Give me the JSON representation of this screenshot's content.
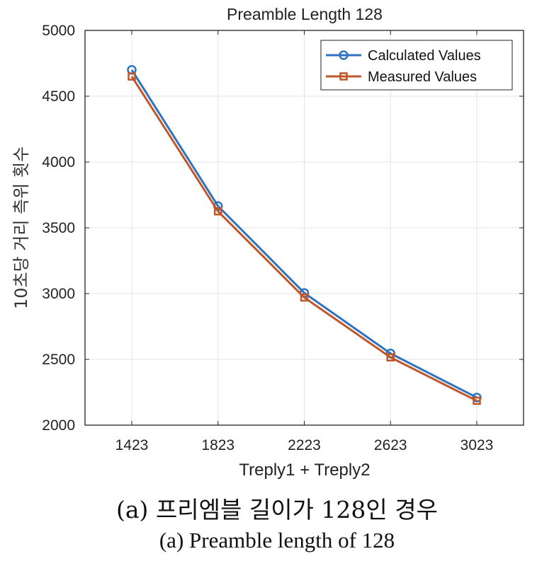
{
  "chart_data": {
    "type": "line",
    "title": "Preamble Length 128",
    "xlabel": "Treply1 + Treply2",
    "ylabel": "10초당 거리 측위 횟수",
    "categories": [
      "1423",
      "1823",
      "2223",
      "2623",
      "3023"
    ],
    "ylim": [
      2000,
      5000
    ],
    "yticks": [
      "2000",
      "2500",
      "3000",
      "3500",
      "4000",
      "4500",
      "5000"
    ],
    "grid": true,
    "legend_position": "top-right",
    "series": [
      {
        "name": "Calculated Values",
        "values": [
          4700,
          3665,
          3005,
          2545,
          2210
        ],
        "color": "#2f73c0",
        "marker": "circle"
      },
      {
        "name": "Measured Values",
        "values": [
          4650,
          3625,
          2970,
          2515,
          2185
        ],
        "color": "#c0572a",
        "marker": "square"
      }
    ]
  },
  "captions": {
    "korean": "(a) 프리엠블 길이가 128인 경우",
    "english": "(a) Preamble length of 128"
  }
}
